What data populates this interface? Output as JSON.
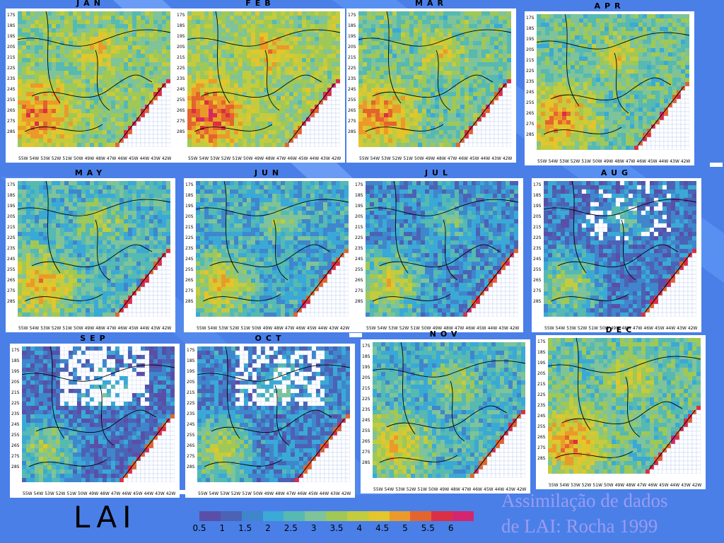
{
  "months": [
    {
      "label": "JAN",
      "shift": 0,
      "gaps": 0
    },
    {
      "label": "FEB",
      "shift": 0.3,
      "gaps": 0
    },
    {
      "label": "MAR",
      "shift": -0.2,
      "gaps": 0
    },
    {
      "label": "APR",
      "shift": -0.3,
      "gaps": 0
    },
    {
      "label": "MAY",
      "shift": -0.8,
      "gaps": 0
    },
    {
      "label": "JUN",
      "shift": -1.1,
      "gaps": 0
    },
    {
      "label": "JUL",
      "shift": -1.5,
      "gaps": 0
    },
    {
      "label": "AUG",
      "shift": -1.9,
      "gaps": 1
    },
    {
      "label": "SEP",
      "shift": -2.0,
      "gaps": 3
    },
    {
      "label": "OCT",
      "shift": -1.7,
      "gaps": 2
    },
    {
      "label": "NOV",
      "shift": -0.9,
      "gaps": 0
    },
    {
      "label": "DEC",
      "shift": -0.4,
      "gaps": 0
    }
  ],
  "latitudes": [
    "17S",
    "18S",
    "19S",
    "20S",
    "21S",
    "22S",
    "23S",
    "24S",
    "25S",
    "26S",
    "27S",
    "28S"
  ],
  "longitudes": [
    "55W",
    "54W",
    "53W",
    "52W",
    "51W",
    "50W",
    "49W",
    "48W",
    "47W",
    "46W",
    "45W",
    "44W",
    "43W",
    "42W"
  ],
  "colorbar": {
    "colors": [
      "#5a4fa8",
      "#4b62b5",
      "#3f86cc",
      "#3aa9d6",
      "#56b9b2",
      "#7ec39a",
      "#9fc856",
      "#c2cc3e",
      "#e3c52c",
      "#eb9a2a",
      "#e4642e",
      "#db2f45",
      "#d4266e"
    ],
    "ticks": [
      "0.5",
      "1",
      "1.5",
      "2",
      "2.5",
      "3",
      "3.5",
      "4",
      "4.5",
      "5",
      "5.5",
      "6"
    ]
  },
  "variable_label": "LAI",
  "caption_line1": "Assimilação de dados",
  "caption_line2": "de LAI: Rocha 1999"
}
